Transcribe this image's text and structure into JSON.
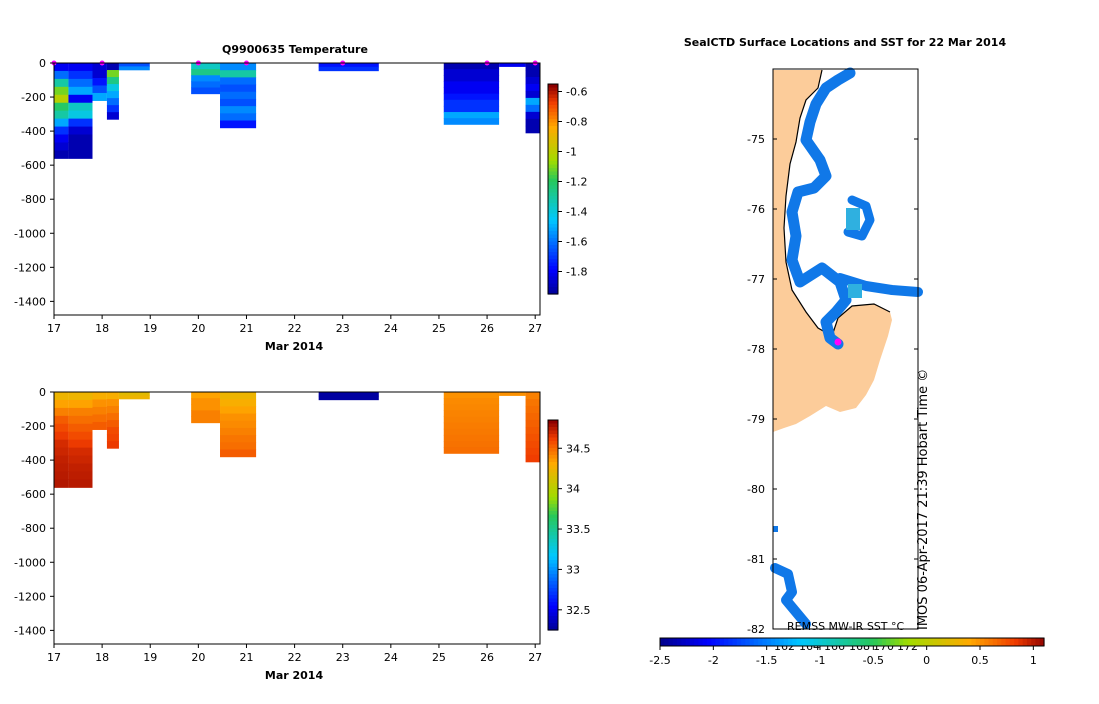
{
  "chart_data": [
    {
      "type": "heatmap",
      "title": "Q9900635  Temperature",
      "xlabel": "Mar 2014",
      "ylabel": "",
      "xlim": [
        17,
        27.1
      ],
      "ylim": [
        -1480,
        0
      ],
      "xticks": [
        17,
        18,
        19,
        20,
        21,
        22,
        23,
        24,
        25,
        26,
        27
      ],
      "yticks": [
        0,
        -200,
        -400,
        -600,
        -800,
        -1000,
        -1200,
        -1400
      ],
      "colorbar": {
        "min": -1.95,
        "max": -0.55,
        "ticks": [
          -0.6,
          -0.8,
          -1,
          -1.2,
          -1.4,
          -1.6,
          -1.8
        ]
      },
      "markers": [
        17.0,
        18.0,
        20.0,
        21.0,
        23.0,
        26.0,
        27.0
      ],
      "profiles": [
        {
          "x0": 17.0,
          "x1": 17.3,
          "depth": 560,
          "values": [
            -1.8,
            -1.6,
            -1.3,
            -1.1,
            -1.0,
            -1.2,
            -1.3,
            -1.5,
            -1.7,
            -1.8,
            -1.85,
            -1.9
          ]
        },
        {
          "x0": 17.3,
          "x1": 17.8,
          "depth": 560,
          "values": [
            -1.8,
            -1.7,
            -1.6,
            -1.5,
            -1.8,
            -1.35,
            -1.4,
            -1.7,
            -1.85,
            -1.9,
            -1.9,
            -1.9
          ]
        },
        {
          "x0": 17.8,
          "x1": 18.1,
          "depth": 220,
          "values": [
            -1.85,
            -1.85,
            -1.75,
            -1.65,
            -1.5
          ]
        },
        {
          "x0": 18.1,
          "x1": 18.35,
          "depth": 330,
          "values": [
            -1.9,
            -1.1,
            -1.25,
            -1.4,
            -1.5,
            -1.6,
            -1.7,
            -1.85
          ]
        },
        {
          "x0": 18.35,
          "x1": 18.99,
          "depth": 40,
          "values": [
            -1.65,
            -1.55
          ]
        },
        {
          "x0": 19.85,
          "x1": 20.45,
          "depth": 180,
          "values": [
            -1.35,
            -1.25,
            -1.55,
            -1.6,
            -1.65
          ]
        },
        {
          "x0": 20.45,
          "x1": 21.2,
          "depth": 380,
          "values": [
            -1.55,
            -1.3,
            -1.6,
            -1.65,
            -1.6,
            -1.65,
            -1.55,
            -1.6,
            -1.75
          ]
        },
        {
          "x0": 22.5,
          "x1": 23.75,
          "depth": 45,
          "values": [
            -1.75,
            -1.7
          ]
        },
        {
          "x0": 25.1,
          "x1": 26.25,
          "depth": 360,
          "values": [
            -1.9,
            -1.85,
            -1.85,
            -1.8,
            -1.8,
            -1.75,
            -1.7,
            -1.7,
            -1.5,
            -1.55
          ]
        },
        {
          "x0": 26.25,
          "x1": 26.8,
          "depth": 20,
          "values": [
            -1.8
          ]
        },
        {
          "x0": 26.8,
          "x1": 27.1,
          "depth": 410,
          "values": [
            -1.9,
            -1.9,
            -1.85,
            -1.8,
            -1.85,
            -1.5,
            -1.6,
            -1.85,
            -1.9,
            -1.9
          ]
        }
      ]
    },
    {
      "type": "heatmap",
      "title": "",
      "xlabel": "Mar 2014",
      "ylabel": "",
      "xlim": [
        17,
        27.1
      ],
      "ylim": [
        -1480,
        0
      ],
      "xticks": [
        17,
        18,
        19,
        20,
        21,
        22,
        23,
        24,
        25,
        26,
        27
      ],
      "yticks": [
        0,
        -200,
        -400,
        -600,
        -800,
        -1000,
        -1200,
        -1400
      ],
      "colorbar": {
        "min": 32.25,
        "max": 34.85,
        "ticks": [
          34.5,
          34,
          33.5,
          33,
          32.5
        ]
      },
      "profiles": [
        {
          "x0": 17.0,
          "x1": 17.3,
          "depth": 560,
          "values": [
            34.25,
            34.35,
            34.45,
            34.55,
            34.6,
            34.65,
            34.7,
            34.72,
            34.74,
            34.75,
            34.76,
            34.77
          ]
        },
        {
          "x0": 17.3,
          "x1": 17.8,
          "depth": 560,
          "values": [
            34.25,
            34.35,
            34.45,
            34.5,
            34.55,
            34.6,
            34.65,
            34.7,
            34.72,
            34.74,
            34.75,
            34.76
          ]
        },
        {
          "x0": 17.8,
          "x1": 18.1,
          "depth": 220,
          "values": [
            34.3,
            34.4,
            34.45,
            34.5,
            34.55
          ]
        },
        {
          "x0": 18.1,
          "x1": 18.35,
          "depth": 330,
          "values": [
            34.3,
            34.4,
            34.45,
            34.5,
            34.55,
            34.6,
            34.62,
            34.65
          ]
        },
        {
          "x0": 18.35,
          "x1": 18.99,
          "depth": 40,
          "values": [
            34.2,
            34.25
          ]
        },
        {
          "x0": 19.85,
          "x1": 20.45,
          "depth": 180,
          "values": [
            34.35,
            34.4,
            34.4,
            34.45,
            34.45
          ]
        },
        {
          "x0": 20.45,
          "x1": 21.2,
          "depth": 380,
          "values": [
            34.25,
            34.3,
            34.35,
            34.4,
            34.42,
            34.45,
            34.48,
            34.5,
            34.55
          ]
        },
        {
          "x0": 22.5,
          "x1": 23.75,
          "depth": 45,
          "values": [
            32.3,
            32.3
          ]
        },
        {
          "x0": 25.1,
          "x1": 26.25,
          "depth": 360,
          "values": [
            34.4,
            34.42,
            34.43,
            34.44,
            34.45,
            34.46,
            34.47,
            34.48,
            34.49,
            34.5
          ]
        },
        {
          "x0": 26.25,
          "x1": 26.8,
          "depth": 20,
          "values": [
            34.4
          ]
        },
        {
          "x0": 26.8,
          "x1": 27.1,
          "depth": 410,
          "values": [
            34.45,
            34.48,
            34.5,
            34.52,
            34.54,
            34.56,
            34.58,
            34.6,
            34.62,
            34.64
          ]
        }
      ]
    },
    {
      "type": "map",
      "title": "SealCTD Surface Locations and SST for 22 Mar 2014",
      "latlim": [
        -82,
        -74
      ],
      "lat_ticks": [
        -75,
        -76,
        -77,
        -78,
        -79,
        -80,
        -81,
        -82
      ],
      "lat_tick_labels": [
        "-75",
        "-76",
        "-77",
        "-78",
        "-79",
        "-80",
        "-81",
        "-82"
      ],
      "colorbar": {
        "min": -2.5,
        "max": 1.1,
        "ticks": [
          -2.5,
          -2,
          -1.5,
          -1,
          -0.5,
          0,
          0.5,
          1
        ],
        "tick_labels": [
          "-2.5",
          "-2",
          "-1.5",
          "-1",
          "-0.5",
          "0",
          "0.5",
          "1"
        ],
        "longitude_labels": [
          "162",
          "164",
          "166",
          "168",
          "170",
          "172"
        ]
      },
      "sst_label": "REMSS MW-IR SST °C",
      "copyright_label": "IMOS 06-Apr-2017 21:39 Hobart Time ©",
      "seal_position": {
        "lat": -77.9
      },
      "colors": {
        "land": "#fccc9a",
        "ice_water": "#1078e8",
        "warm_water": "#2fb0e0",
        "marker": "#ff00ff"
      }
    }
  ]
}
